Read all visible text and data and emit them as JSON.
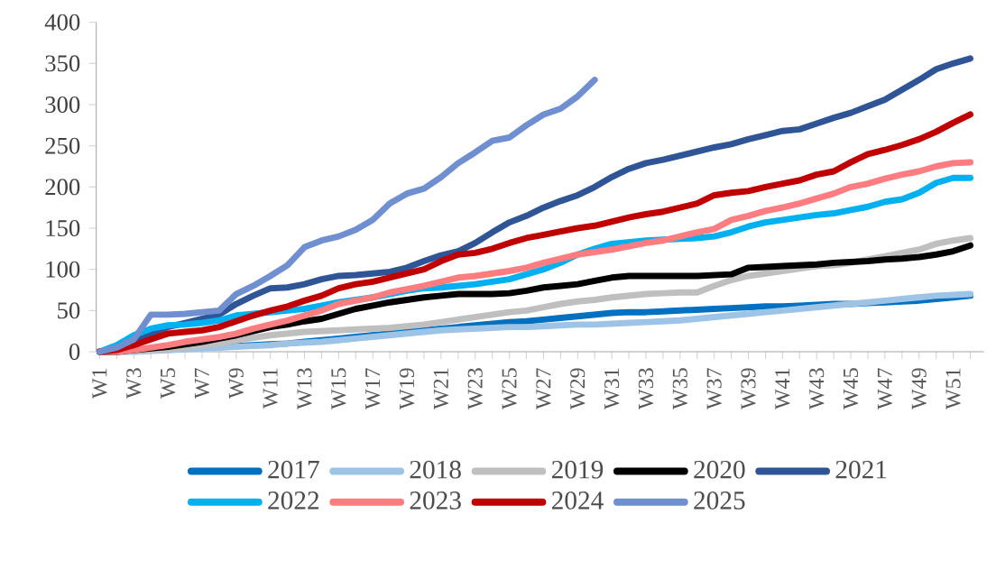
{
  "chart_data": {
    "type": "line",
    "categories": [
      "W1",
      null,
      "W3",
      null,
      "W5",
      null,
      "W7",
      null,
      "W9",
      null,
      "W11",
      null,
      "W13",
      null,
      "W15",
      null,
      "W17",
      null,
      "W19",
      null,
      "W21",
      null,
      "W23",
      null,
      "W25",
      null,
      "W27",
      null,
      "W29",
      null,
      "W31",
      null,
      "W33",
      null,
      "W35",
      null,
      "W37",
      null,
      "W39",
      null,
      "W41",
      null,
      "W43",
      null,
      "W45",
      null,
      "W47",
      null,
      "W49",
      null,
      "W51",
      null
    ],
    "ylim": [
      0,
      400
    ],
    "yticks": [
      0,
      50,
      100,
      150,
      200,
      250,
      300,
      350,
      400
    ],
    "legend": "bottom",
    "marker": "none",
    "line_style": "solid",
    "series": [
      {
        "name": "2017",
        "color": "#0070c0",
        "values": [
          0,
          0,
          1,
          2,
          3,
          4,
          5,
          6,
          7,
          8,
          9,
          10,
          12,
          14,
          16,
          18,
          20,
          22,
          24,
          26,
          28,
          30,
          32,
          34,
          36,
          37,
          39,
          41,
          43,
          45,
          47,
          48,
          48,
          49,
          50,
          51,
          52,
          53,
          54,
          55,
          55,
          56,
          57,
          58,
          58,
          59,
          60,
          61,
          62,
          64,
          66,
          68
        ]
      },
      {
        "name": "2018",
        "color": "#9dc3e6",
        "values": [
          0,
          0,
          0,
          1,
          2,
          3,
          4,
          5,
          6,
          7,
          8,
          10,
          11,
          12,
          14,
          16,
          18,
          20,
          22,
          24,
          26,
          27,
          28,
          29,
          30,
          30,
          31,
          32,
          33,
          33,
          34,
          35,
          36,
          37,
          38,
          40,
          42,
          44,
          46,
          48,
          50,
          52,
          54,
          56,
          58,
          60,
          62,
          64,
          66,
          68,
          69,
          70
        ]
      },
      {
        "name": "2019",
        "color": "#bfbfbf",
        "values": [
          0,
          0,
          1,
          2,
          3,
          5,
          8,
          10,
          14,
          17,
          20,
          22,
          24,
          25,
          26,
          27,
          28,
          29,
          31,
          33,
          36,
          39,
          42,
          45,
          48,
          50,
          54,
          58,
          61,
          63,
          66,
          68,
          70,
          71,
          72,
          72,
          80,
          87,
          92,
          95,
          98,
          101,
          104,
          105,
          108,
          112,
          116,
          120,
          124,
          131,
          135,
          138
        ]
      },
      {
        "name": "2020",
        "color": "#000000",
        "values": [
          0,
          0,
          2,
          4,
          6,
          9,
          12,
          16,
          20,
          25,
          30,
          33,
          37,
          40,
          46,
          52,
          56,
          60,
          63,
          66,
          68,
          70,
          70,
          70,
          71,
          74,
          78,
          80,
          82,
          86,
          90,
          92,
          92,
          92,
          92,
          92,
          93,
          94,
          102,
          103,
          104,
          105,
          106,
          108,
          109,
          110,
          112,
          113,
          115,
          118,
          122,
          129
        ]
      },
      {
        "name": "2021",
        "color": "#2f5597",
        "values": [
          0,
          3,
          15,
          22,
          30,
          35,
          40,
          45,
          58,
          68,
          77,
          78,
          82,
          88,
          92,
          93,
          95,
          97,
          102,
          110,
          117,
          122,
          132,
          145,
          157,
          165,
          175,
          183,
          190,
          200,
          212,
          222,
          229,
          233,
          238,
          243,
          248,
          252,
          258,
          263,
          268,
          270,
          277,
          284,
          290,
          298,
          306,
          318,
          330,
          343,
          350,
          356
        ]
      },
      {
        "name": "2022",
        "color": "#00b0f0",
        "values": [
          0,
          8,
          20,
          28,
          32,
          33,
          35,
          38,
          44,
          46,
          48,
          50,
          52,
          56,
          60,
          63,
          66,
          70,
          74,
          77,
          78,
          80,
          82,
          85,
          88,
          94,
          100,
          108,
          118,
          125,
          131,
          133,
          135,
          136,
          137,
          138,
          140,
          145,
          152,
          157,
          160,
          163,
          166,
          168,
          172,
          176,
          182,
          185,
          193,
          205,
          211,
          211
        ]
      },
      {
        "name": "2023",
        "color": "#ff7c80",
        "values": [
          0,
          0,
          2,
          5,
          8,
          12,
          15,
          18,
          22,
          28,
          33,
          38,
          44,
          50,
          58,
          62,
          66,
          72,
          76,
          80,
          85,
          90,
          92,
          95,
          98,
          102,
          108,
          113,
          118,
          121,
          124,
          128,
          132,
          135,
          140,
          145,
          149,
          160,
          165,
          171,
          175,
          180,
          186,
          192,
          200,
          204,
          210,
          215,
          219,
          225,
          229,
          230
        ]
      },
      {
        "name": "2024",
        "color": "#c00000",
        "values": [
          0,
          2,
          8,
          15,
          22,
          24,
          26,
          30,
          37,
          44,
          50,
          55,
          62,
          68,
          77,
          82,
          85,
          90,
          95,
          100,
          110,
          118,
          120,
          125,
          132,
          138,
          142,
          146,
          150,
          153,
          158,
          163,
          167,
          170,
          175,
          180,
          190,
          193,
          195,
          200,
          204,
          208,
          215,
          219,
          230,
          240,
          245,
          251,
          258,
          267,
          278,
          288
        ]
      },
      {
        "name": "2025",
        "color": "#6f8fd0",
        "values": [
          0,
          5,
          15,
          45,
          45,
          46,
          48,
          50,
          70,
          80,
          92,
          105,
          127,
          135,
          140,
          148,
          160,
          180,
          192,
          198,
          212,
          229,
          242,
          256,
          260,
          275,
          288,
          295,
          310,
          330,
          null,
          null,
          null,
          null,
          null,
          null,
          null,
          null,
          null,
          null,
          null,
          null,
          null,
          null,
          null,
          null,
          null,
          null,
          null,
          null,
          null,
          null
        ]
      }
    ]
  }
}
